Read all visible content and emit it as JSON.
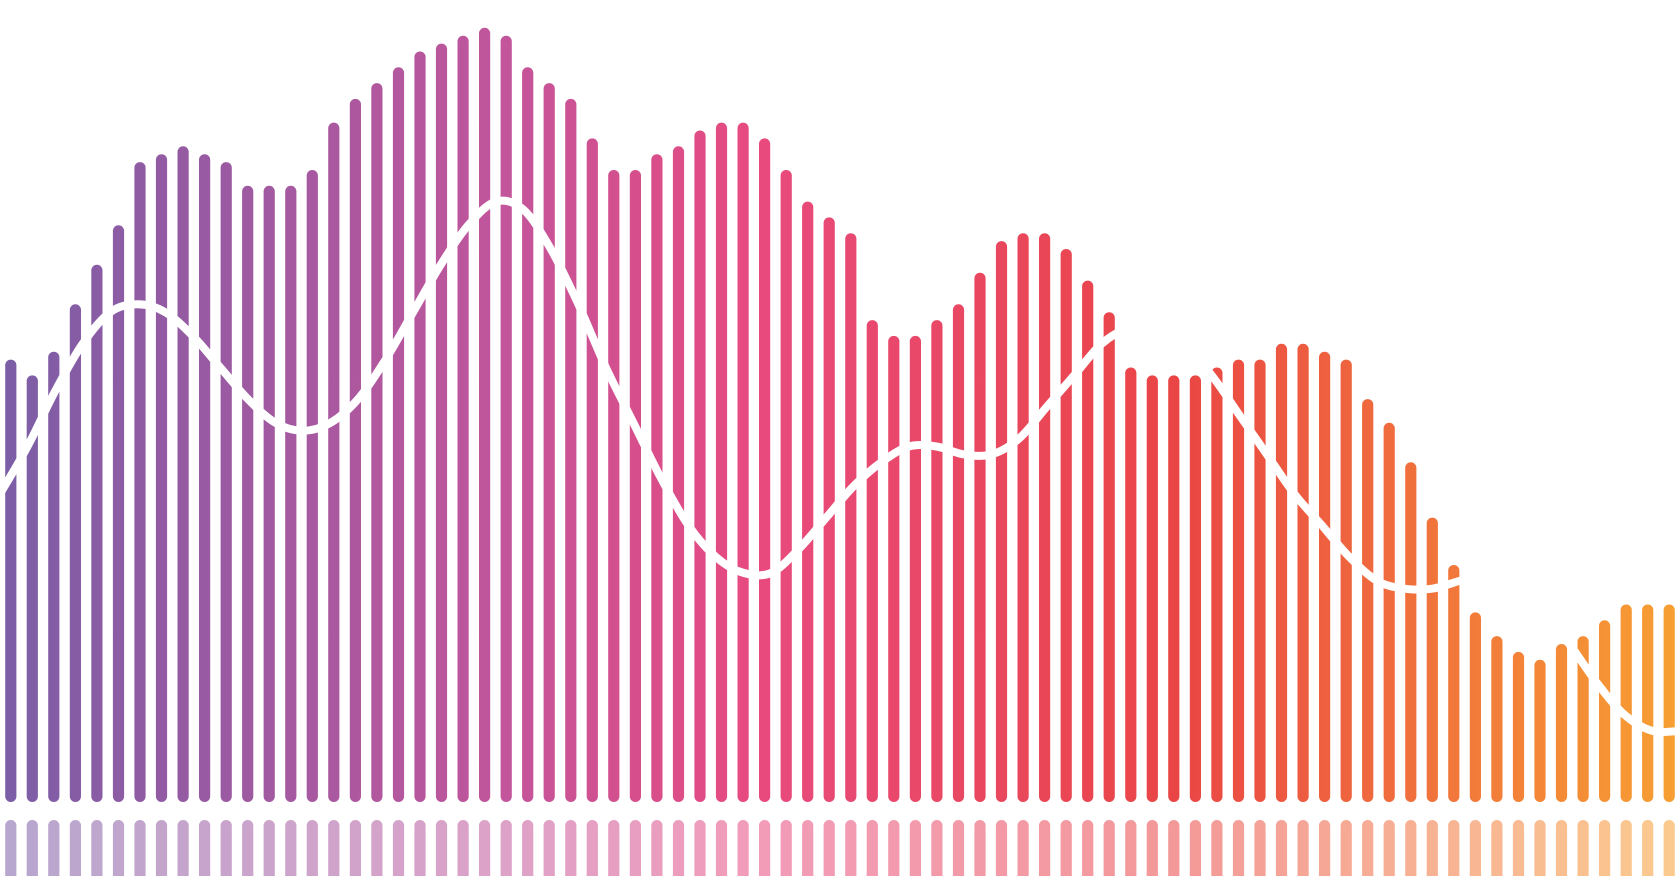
{
  "chart_data": {
    "type": "bar",
    "title": "",
    "xlabel": "",
    "ylabel": "",
    "ylim": [
      0,
      100
    ],
    "grid": false,
    "legend": "none",
    "mirror_reflection": true,
    "colors": {
      "gradient_start": "#7b5ea7",
      "gradient_mid1": "#c2559b",
      "gradient_mid2": "#e84a7f",
      "gradient_mid3": "#ea4545",
      "gradient_end": "#f7a032",
      "overlay_line": "#ffffff",
      "background": "#ffffff"
    },
    "series": [
      {
        "type": "bar",
        "values": [
          56,
          54,
          57,
          63,
          68,
          73,
          81,
          82,
          83,
          82,
          81,
          78,
          78,
          78,
          80,
          86,
          89,
          91,
          93,
          95,
          96,
          97,
          98,
          97,
          93,
          91,
          89,
          84,
          80,
          80,
          82,
          83,
          85,
          86,
          86,
          84,
          80,
          76,
          74,
          72,
          61,
          59,
          59,
          61,
          63,
          67,
          71,
          72,
          72,
          70,
          66,
          62,
          55,
          54,
          54,
          54,
          55,
          56,
          56,
          58,
          58,
          57,
          56,
          51,
          48,
          43,
          36,
          30,
          24,
          21,
          19,
          18,
          20,
          21,
          23,
          25,
          25,
          25
        ]
      },
      {
        "type": "line",
        "values": [
          39,
          45,
          52,
          58,
          62,
          63,
          62,
          59,
          55,
          51,
          48,
          47,
          48,
          51,
          56,
          62,
          68,
          73,
          76,
          75,
          70,
          63,
          55,
          48,
          41,
          35,
          31,
          29,
          29,
          32,
          36,
          40,
          43,
          45,
          45,
          44,
          44,
          46,
          50,
          54,
          58,
          60,
          60,
          58,
          54,
          49,
          44,
          39,
          35,
          31,
          28,
          27,
          27,
          28,
          29,
          28,
          25,
          20,
          15,
          11,
          9,
          9
        ]
      }
    ]
  }
}
